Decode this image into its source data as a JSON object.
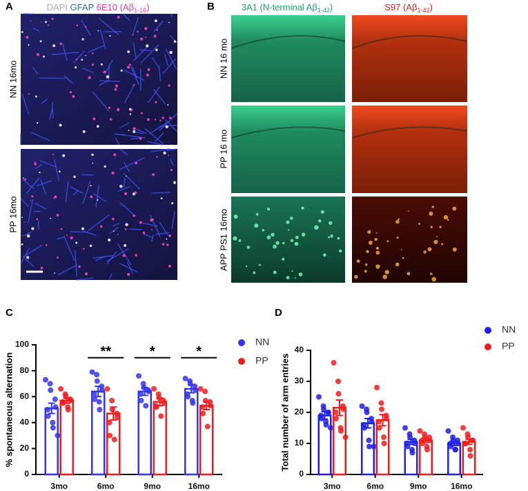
{
  "panel_a": {
    "label": "A",
    "legend": [
      "DAPI",
      "GFAP",
      "6E10 (Aβ",
      "1-16",
      ")"
    ],
    "rows": [
      "NN 16mo",
      "PP 16mo"
    ]
  },
  "panel_b": {
    "label": "B",
    "columns": [
      {
        "text": "3A1 (N-terminal Aβ",
        "sub": "1-42",
        "end": ")"
      },
      {
        "text": "S97 (Aβ",
        "sub": "1-42",
        "end": ")"
      }
    ],
    "rows": [
      "NN 16 mo",
      "PP 16 mo",
      "APP PS1 16mo"
    ]
  },
  "chart_data": [
    {
      "type": "bar",
      "panel_label": "C",
      "y_label": "% spontaneous alternation",
      "categories": [
        "3mo",
        "6mo",
        "9mo",
        "16mo"
      ],
      "ylim": [
        0,
        100
      ],
      "yticks": [
        0,
        20,
        40,
        60,
        80,
        100
      ],
      "significance": [
        null,
        "**",
        "*",
        "*"
      ],
      "series": [
        {
          "name": "NN",
          "color": "#3434ee",
          "values": [
            51,
            64,
            64,
            66
          ],
          "errors": [
            4,
            4,
            3,
            3
          ],
          "points": [
            [
              73,
              70,
              65,
              58,
              52,
              50,
              45,
              40,
              36,
              30
            ],
            [
              79,
              77,
              72,
              68,
              65,
              62,
              58,
              56,
              50
            ],
            [
              76,
              70,
              67,
              65,
              64,
              62,
              57,
              53
            ],
            [
              74,
              72,
              70,
              68,
              65,
              62,
              60,
              57,
              55
            ]
          ]
        },
        {
          "name": "PP",
          "color": "#ee1c1c",
          "values": [
            57,
            47,
            56,
            53
          ],
          "errors": [
            2,
            5,
            3,
            3
          ],
          "points": [
            [
              66,
              62,
              60,
              58,
              57,
              56,
              55,
              52,
              50
            ],
            [
              66,
              57,
              50,
              47,
              44,
              40,
              30,
              27
            ],
            [
              66,
              62,
              59,
              57,
              55,
              53,
              52,
              45
            ],
            [
              66,
              64,
              57,
              56,
              53,
              52,
              47,
              37
            ]
          ]
        }
      ]
    },
    {
      "type": "bar",
      "panel_label": "D",
      "y_label": "Total number of arm entries",
      "categories": [
        "3mo",
        "6mo",
        "9mo",
        "16mo"
      ],
      "ylim": [
        0,
        40
      ],
      "yticks": [
        0,
        10,
        20,
        30,
        40
      ],
      "series": [
        {
          "name": "NN",
          "color": "#2020e8",
          "values": [
            19,
            16.5,
            10.5,
            10
          ],
          "errors": [
            1.2,
            1.5,
            0.8,
            0.7
          ],
          "points": [
            [
              25,
              22,
              21,
              20,
              20,
              19,
              18,
              17,
              16,
              15
            ],
            [
              22,
              21,
              20,
              18,
              17,
              16,
              15,
              11,
              9,
              9
            ],
            [
              15,
              13,
              12,
              11,
              10,
              10,
              9,
              8,
              7
            ],
            [
              14,
              12,
              11,
              11,
              10,
              10,
              9,
              8,
              8
            ]
          ]
        },
        {
          "name": "PP",
          "color": "#ee1c1c",
          "values": [
            21.5,
            17.5,
            11,
            10.5
          ],
          "errors": [
            2.5,
            1.8,
            0.7,
            0.8
          ],
          "points": [
            [
              36,
              30,
              26,
              22,
              21,
              20,
              18,
              15,
              14,
              12
            ],
            [
              28,
              23,
              21,
              19,
              18,
              17,
              15,
              12,
              10
            ],
            [
              14,
              13,
              12,
              12,
              11,
              11,
              10,
              9,
              8
            ],
            [
              15,
              13,
              12,
              11,
              11,
              10,
              10,
              8,
              6
            ]
          ]
        }
      ]
    }
  ]
}
